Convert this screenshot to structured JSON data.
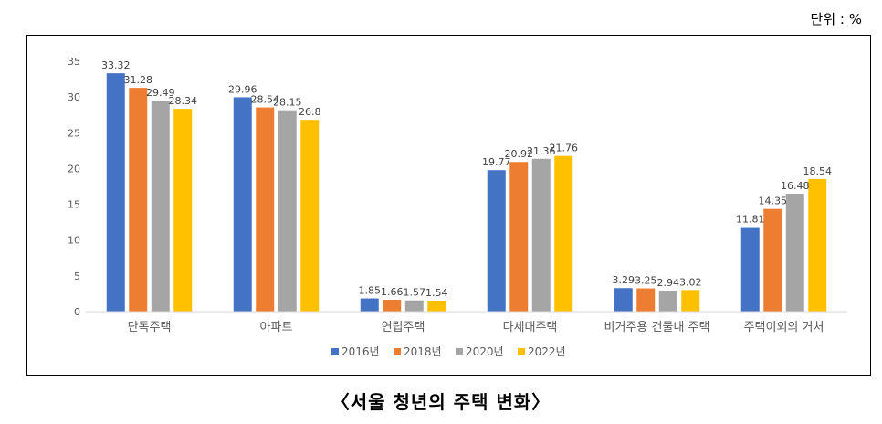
{
  "unit_label": "단위 : %",
  "caption": "〈서울 청년의 주택 변화〉",
  "chart_data": {
    "type": "bar",
    "title": "",
    "xlabel": "",
    "ylabel": "",
    "ylim": [
      0,
      35
    ],
    "yticks": [
      0,
      5,
      10,
      15,
      20,
      25,
      30,
      35
    ],
    "grid": false,
    "legend_position": "bottom",
    "categories": [
      "단독주택",
      "아파트",
      "연립주택",
      "다세대주택",
      "비거주용 건물내 주택",
      "주택이외의 거처"
    ],
    "series": [
      {
        "name": "2016년",
        "color": "#4472c4",
        "values": [
          33.32,
          29.96,
          1.85,
          19.77,
          3.29,
          11.81
        ],
        "labels": [
          "33.32",
          "29.96",
          "1.85",
          "19.77",
          "3.29",
          "11.81"
        ]
      },
      {
        "name": "2018년",
        "color": "#ed7d31",
        "values": [
          31.28,
          28.54,
          1.66,
          20.92,
          3.25,
          14.35
        ],
        "labels": [
          "31.28",
          "28.54",
          "1.66",
          "20.92",
          "3.25",
          "14.35"
        ]
      },
      {
        "name": "2020년",
        "color": "#a5a5a5",
        "values": [
          29.49,
          28.15,
          1.57,
          21.36,
          2.94,
          16.48
        ],
        "labels": [
          "29.49",
          "28.15",
          "1.57",
          "21.36",
          "2.94",
          "16.48"
        ]
      },
      {
        "name": "2022년",
        "color": "#ffc000",
        "values": [
          28.34,
          26.8,
          1.54,
          21.76,
          3.02,
          18.54
        ],
        "labels": [
          "28.34",
          "26.8",
          "1.54",
          "21.76",
          "3.02",
          "18.54"
        ]
      }
    ]
  }
}
